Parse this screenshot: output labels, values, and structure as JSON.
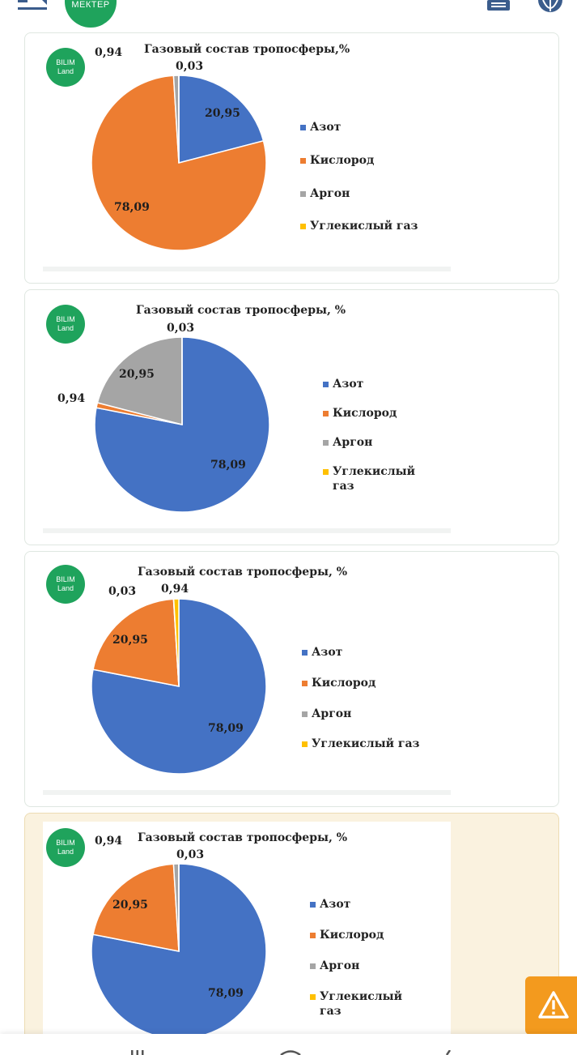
{
  "header": {
    "logo_text": "МЕКТЕР",
    "icons": [
      "menu-icon",
      "document-icon",
      "globe-icon"
    ]
  },
  "options": [
    {
      "badge": [
        "BILIM",
        "Land"
      ],
      "title": "Газовый состав тропосферы,%",
      "labels": [
        "20,95",
        "78,09",
        "0,94",
        "0,03"
      ],
      "legend": [
        "Азот",
        "Кислород",
        "Аргон",
        "Углекислый газ"
      ],
      "selected": false
    },
    {
      "badge": [
        "BILIM",
        "Land"
      ],
      "title": "Газовый состав тропосферы, %",
      "labels": [
        "78,09",
        "0,94",
        "20,95",
        "0,03"
      ],
      "legend": [
        "Азот",
        "Кислород",
        "Аргон",
        "Углекислый",
        "газ"
      ],
      "selected": false
    },
    {
      "badge": [
        "BILIM",
        "Land"
      ],
      "title": "Газовый состав тропосферы, %",
      "labels": [
        "78,09",
        "20,95",
        "0,03",
        "0,94"
      ],
      "legend": [
        "Азот",
        "Кислород",
        "Аргон",
        "Углекислый газ"
      ],
      "selected": false
    },
    {
      "badge": [
        "BILIM",
        "Land"
      ],
      "title": "Газовый состав тропосферы, %",
      "labels": [
        "78,09",
        "20,95",
        "0,94",
        "0,03"
      ],
      "legend": [
        "Азот",
        "Кислород",
        "Аргон",
        "Углекислый",
        "газ"
      ],
      "selected": true
    }
  ],
  "chart_data": [
    {
      "type": "pie",
      "title": "Газовый состав тропосферы,%",
      "categories": [
        "Азот",
        "Кислород",
        "Аргон",
        "Углекислый газ"
      ],
      "values": [
        20.95,
        78.09,
        0.94,
        0.03
      ],
      "colors": [
        "#4472c4",
        "#ed7d31",
        "#a5a5a5",
        "#ffc000"
      ],
      "legend_position": "right"
    },
    {
      "type": "pie",
      "title": "Газовый состав тропосферы, %",
      "categories": [
        "Азот",
        "Кислород",
        "Аргон",
        "Углекислый газ"
      ],
      "values": [
        78.09,
        0.94,
        20.95,
        0.03
      ],
      "colors": [
        "#4472c4",
        "#ed7d31",
        "#a5a5a5",
        "#ffc000"
      ],
      "legend_position": "right"
    },
    {
      "type": "pie",
      "title": "Газовый состав тропосферы, %",
      "categories": [
        "Азот",
        "Кислород",
        "Аргон",
        "Углекислый газ"
      ],
      "values": [
        78.09,
        20.95,
        0.03,
        0.94
      ],
      "colors": [
        "#4472c4",
        "#ed7d31",
        "#a5a5a5",
        "#ffc000"
      ],
      "legend_position": "right"
    },
    {
      "type": "pie",
      "title": "Газовый состав тропосферы, %",
      "categories": [
        "Азот",
        "Кислород",
        "Аргон",
        "Углекислый газ"
      ],
      "values": [
        78.09,
        20.95,
        0.94,
        0.03
      ],
      "colors": [
        "#4472c4",
        "#ed7d31",
        "#a5a5a5",
        "#ffc000"
      ],
      "legend_position": "right"
    }
  ],
  "colors": {
    "accent_green": "#1fa35c",
    "selected_bg": "#faf2df",
    "warning": "#f39a1e"
  },
  "footer": {
    "icons": [
      "grid-icon",
      "home-icon",
      "profile-icon"
    ]
  },
  "warning_button_icon": "warning-icon"
}
